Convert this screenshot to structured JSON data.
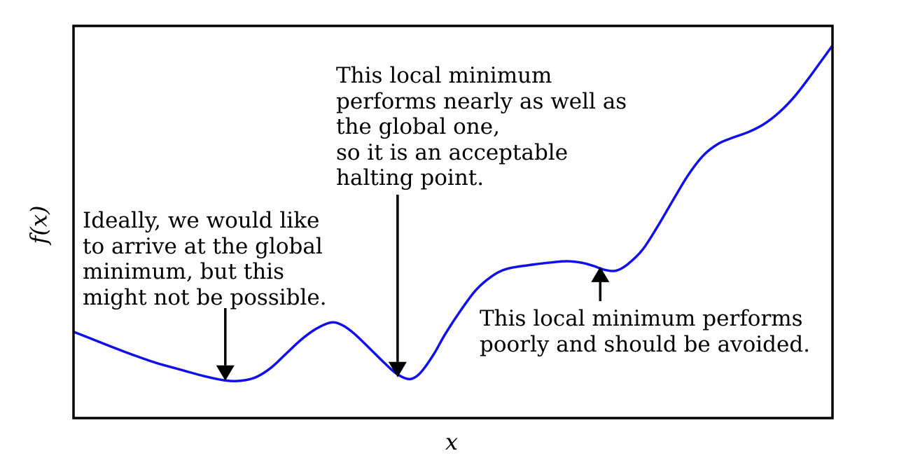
{
  "chart_data": {
    "type": "line",
    "title": "",
    "xlabel": "x",
    "ylabel": "f(x)",
    "grid": false,
    "series": [
      {
        "color": "#1010ee",
        "points": [
          [
            0,
            0.22
          ],
          [
            0.02,
            0.205
          ],
          [
            0.05,
            0.182
          ],
          [
            0.08,
            0.16
          ],
          [
            0.11,
            0.14
          ],
          [
            0.14,
            0.124
          ],
          [
            0.17,
            0.108
          ],
          [
            0.2,
            0.096
          ],
          [
            0.22,
            0.095
          ],
          [
            0.24,
            0.104
          ],
          [
            0.26,
            0.128
          ],
          [
            0.28,
            0.164
          ],
          [
            0.3,
            0.2
          ],
          [
            0.32,
            0.228
          ],
          [
            0.34,
            0.244
          ],
          [
            0.355,
            0.236
          ],
          [
            0.37,
            0.215
          ],
          [
            0.39,
            0.178
          ],
          [
            0.41,
            0.14
          ],
          [
            0.425,
            0.114
          ],
          [
            0.44,
            0.1
          ],
          [
            0.45,
            0.104
          ],
          [
            0.46,
            0.122
          ],
          [
            0.475,
            0.164
          ],
          [
            0.49,
            0.215
          ],
          [
            0.51,
            0.274
          ],
          [
            0.53,
            0.326
          ],
          [
            0.55,
            0.36
          ],
          [
            0.57,
            0.38
          ],
          [
            0.6,
            0.39
          ],
          [
            0.63,
            0.397
          ],
          [
            0.65,
            0.4
          ],
          [
            0.67,
            0.396
          ],
          [
            0.685,
            0.388
          ],
          [
            0.7,
            0.378
          ],
          [
            0.715,
            0.376
          ],
          [
            0.73,
            0.392
          ],
          [
            0.75,
            0.43
          ],
          [
            0.77,
            0.49
          ],
          [
            0.79,
            0.556
          ],
          [
            0.81,
            0.62
          ],
          [
            0.83,
            0.67
          ],
          [
            0.85,
            0.7
          ],
          [
            0.87,
            0.716
          ],
          [
            0.89,
            0.73
          ],
          [
            0.91,
            0.75
          ],
          [
            0.93,
            0.78
          ],
          [
            0.95,
            0.82
          ],
          [
            0.97,
            0.87
          ],
          [
            0.985,
            0.91
          ],
          [
            1.0,
            0.95
          ]
        ]
      }
    ],
    "xlim": [
      0,
      1
    ],
    "ylim": [
      0,
      1
    ],
    "annotations": [
      {
        "lines": [
          "Ideally, we would like",
          "to arrive at the global",
          "minimum, but this",
          "might not be possible."
        ],
        "target": [
          0.2,
          0.095
        ]
      },
      {
        "lines": [
          "This local minimum",
          "performs nearly as well as",
          "the global one,",
          "so it is an acceptable",
          "halting point."
        ],
        "target": [
          0.427,
          0.104
        ]
      },
      {
        "lines": [
          "This local minimum performs",
          "poorly and should be avoided."
        ],
        "target": [
          0.694,
          0.386
        ]
      }
    ]
  }
}
